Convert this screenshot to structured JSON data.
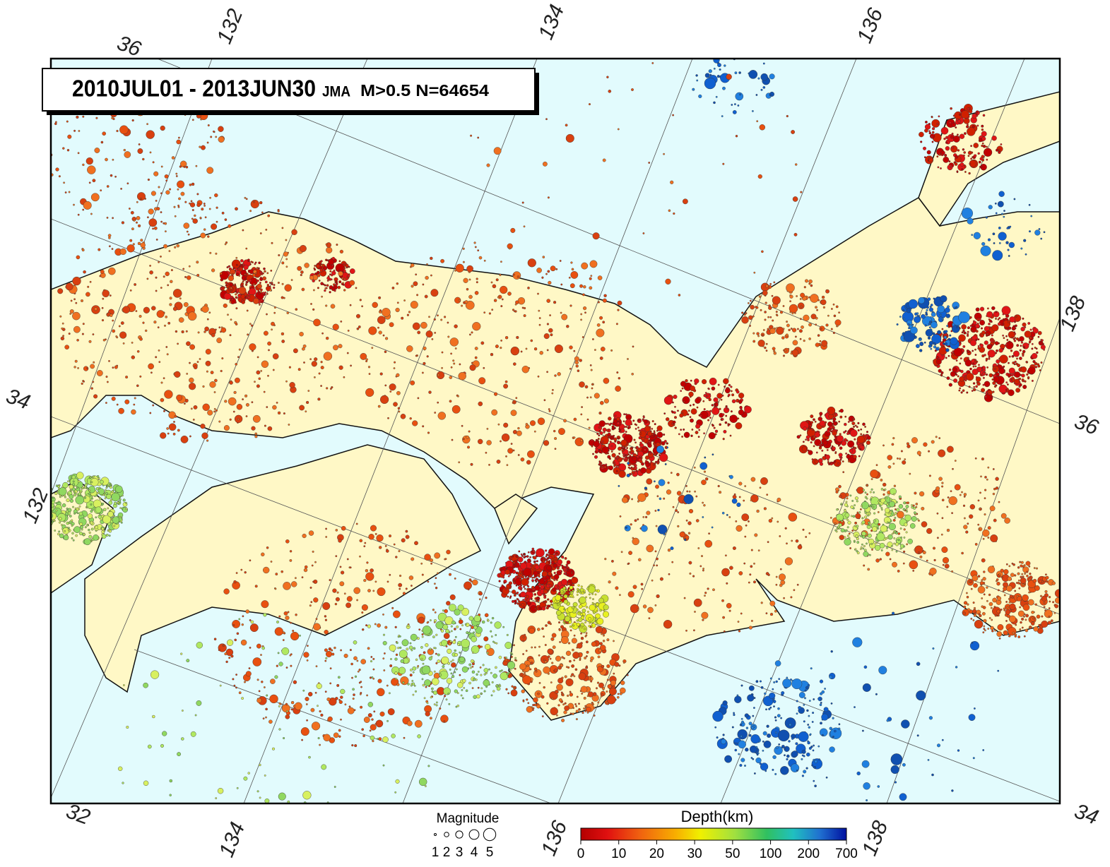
{
  "title": {
    "period": "2010JUL01 - 2013JUN30",
    "source": "JMA",
    "filter": "M>0.5 N=64654"
  },
  "graticule": {
    "top": [
      "36",
      "132",
      "134",
      "136"
    ],
    "right": [
      "138",
      "36"
    ],
    "bottom": [
      "32",
      "134",
      "136",
      "138",
      "34"
    ],
    "left": [
      "34",
      "132"
    ]
  },
  "legend": {
    "magnitude": {
      "title": "Magnitude",
      "labels": [
        "1",
        "2",
        "3",
        "4",
        "5"
      ]
    },
    "depth": {
      "title": "Depth(km)",
      "labels": [
        "0",
        "10",
        "20",
        "30",
        "50",
        "100",
        "200",
        "700"
      ]
    }
  }
}
